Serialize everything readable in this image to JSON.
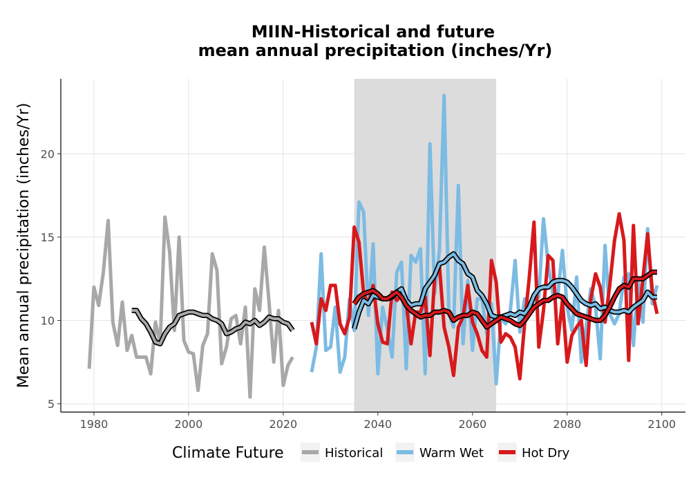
{
  "chart_data": {
    "type": "line",
    "title_lines": [
      "MIIN-Historical and future",
      "mean annual precipitation (inches/Yr)"
    ],
    "xlabel": "",
    "ylabel": "Mean annual precipitation (inches/Yr)",
    "xlim": [
      1973,
      2105
    ],
    "ylim": [
      4.5,
      24.5
    ],
    "x_ticks": [
      1980,
      2000,
      2020,
      2040,
      2060,
      2080,
      2100
    ],
    "y_ticks": [
      5,
      10,
      15,
      20
    ],
    "grid": true,
    "shaded_period": [
      2035,
      2065
    ],
    "legend": {
      "title": "Climate Future",
      "position": "bottom",
      "entries": [
        {
          "label": "Historical",
          "color": "#a8a8a8"
        },
        {
          "label": "Warm Wet",
          "color": "#7cbbe3"
        },
        {
          "label": "Hot Dry",
          "color": "#d7191c"
        }
      ]
    },
    "series": [
      {
        "name": "Historical",
        "color": "#a8a8a8",
        "x": [
          1979,
          1980,
          1981,
          1982,
          1983,
          1984,
          1985,
          1986,
          1987,
          1988,
          1989,
          1990,
          1991,
          1992,
          1993,
          1994,
          1995,
          1996,
          1997,
          1998,
          1999,
          2000,
          2001,
          2002,
          2003,
          2004,
          2005,
          2006,
          2007,
          2008,
          2009,
          2010,
          2011,
          2012,
          2013,
          2014,
          2015,
          2016,
          2017,
          2018,
          2019,
          2020,
          2021,
          2022
        ],
        "values": [
          7.1,
          12.0,
          10.9,
          12.9,
          16.0,
          9.9,
          8.5,
          11.1,
          8.2,
          9.1,
          7.8,
          7.8,
          7.8,
          6.8,
          9.9,
          8.6,
          16.2,
          14.1,
          9.4,
          15.0,
          8.8,
          8.1,
          8.0,
          5.8,
          8.5,
          9.2,
          14.0,
          13.0,
          7.4,
          8.4,
          10.1,
          10.3,
          8.6,
          10.8,
          5.4,
          11.9,
          10.6,
          14.4,
          11.1,
          7.5,
          10.6,
          6.1,
          7.3,
          7.8
        ]
      },
      {
        "name": "Historical rolling mean",
        "color": "#a8a8a8",
        "x": [
          1988,
          1989,
          1990,
          1991,
          1992,
          1993,
          1994,
          1995,
          1996,
          1997,
          1998,
          1999,
          2000,
          2001,
          2002,
          2003,
          2004,
          2005,
          2006,
          2007,
          2008,
          2009,
          2010,
          2011,
          2012,
          2013,
          2014,
          2015,
          2016,
          2017,
          2018,
          2019,
          2020,
          2021,
          2022
        ],
        "values": [
          10.6,
          10.6,
          10.1,
          9.8,
          9.3,
          8.7,
          8.6,
          9.2,
          9.6,
          9.8,
          10.3,
          10.4,
          10.5,
          10.5,
          10.4,
          10.3,
          10.3,
          10.1,
          10.0,
          9.8,
          9.2,
          9.3,
          9.5,
          9.6,
          9.9,
          9.8,
          10.0,
          9.7,
          9.9,
          10.2,
          10.1,
          10.1,
          9.9,
          9.8,
          9.4
        ]
      },
      {
        "name": "Warm Wet",
        "color": "#7cbbe3",
        "x": [
          2026,
          2027,
          2028,
          2029,
          2030,
          2031,
          2032,
          2033,
          2034,
          2035,
          2036,
          2037,
          2038,
          2039,
          2040,
          2041,
          2042,
          2043,
          2044,
          2045,
          2046,
          2047,
          2048,
          2049,
          2050,
          2051,
          2052,
          2053,
          2054,
          2055,
          2056,
          2057,
          2058,
          2059,
          2060,
          2061,
          2062,
          2063,
          2064,
          2065,
          2066,
          2067,
          2068,
          2069,
          2070,
          2071,
          2072,
          2073,
          2074,
          2075,
          2076,
          2077,
          2078,
          2079,
          2080,
          2081,
          2082,
          2083,
          2084,
          2085,
          2086,
          2087,
          2088,
          2089,
          2090,
          2091,
          2092,
          2093,
          2094,
          2095,
          2096,
          2097,
          2098,
          2099
        ],
        "values": [
          6.9,
          8.4,
          14.0,
          8.2,
          8.4,
          10.8,
          6.9,
          7.8,
          11.3,
          9.4,
          17.1,
          16.5,
          10.3,
          14.6,
          6.8,
          10.8,
          9.5,
          7.8,
          12.9,
          13.5,
          7.1,
          13.9,
          13.5,
          14.3,
          6.8,
          20.6,
          11.6,
          14.2,
          23.5,
          10.4,
          9.6,
          18.1,
          8.6,
          12.4,
          8.2,
          11.3,
          11.3,
          9.2,
          11.0,
          6.2,
          10.2,
          9.8,
          10.6,
          13.6,
          9.3,
          11.3,
          10.8,
          11.2,
          11.4,
          16.1,
          13.3,
          11.6,
          11.5,
          14.2,
          10.8,
          9.4,
          12.6,
          7.5,
          9.6,
          11.9,
          10.8,
          7.7,
          14.5,
          10.4,
          9.8,
          10.4,
          12.6,
          12.8,
          8.5,
          12.4,
          9.9,
          15.5,
          11.0,
          12.1
        ]
      },
      {
        "name": "Warm Wet rolling mean",
        "color": "#7cbbe3",
        "x": [
          2035,
          2036,
          2037,
          2038,
          2039,
          2040,
          2041,
          2042,
          2043,
          2044,
          2045,
          2046,
          2047,
          2048,
          2049,
          2050,
          2051,
          2052,
          2053,
          2054,
          2055,
          2056,
          2057,
          2058,
          2059,
          2060,
          2061,
          2062,
          2063,
          2064,
          2065,
          2066,
          2067,
          2068,
          2069,
          2070,
          2071,
          2072,
          2073,
          2074,
          2075,
          2076,
          2077,
          2078,
          2079,
          2080,
          2081,
          2082,
          2083,
          2084,
          2085,
          2086,
          2087,
          2088,
          2089,
          2090,
          2091,
          2092,
          2093,
          2094,
          2095,
          2096,
          2097,
          2098,
          2099
        ],
        "values": [
          9.5,
          10.5,
          11.2,
          11.0,
          11.5,
          11.4,
          11.3,
          11.3,
          11.4,
          11.7,
          11.9,
          11.2,
          10.9,
          11.0,
          11.0,
          11.9,
          12.3,
          12.7,
          13.4,
          13.5,
          13.8,
          14.0,
          13.6,
          13.4,
          12.8,
          12.6,
          11.8,
          11.5,
          11.0,
          10.3,
          10.2,
          10.2,
          10.3,
          10.4,
          10.3,
          10.5,
          10.4,
          10.8,
          11.5,
          11.9,
          12.0,
          12.0,
          12.3,
          12.4,
          12.4,
          12.3,
          12.0,
          11.6,
          11.2,
          11.0,
          10.9,
          11.0,
          10.7,
          10.8,
          10.6,
          10.5,
          10.5,
          10.6,
          10.5,
          10.8,
          11.0,
          11.2,
          11.7,
          11.4,
          11.4
        ]
      },
      {
        "name": "Hot Dry",
        "color": "#d7191c",
        "x": [
          2026,
          2027,
          2028,
          2029,
          2030,
          2031,
          2032,
          2033,
          2034,
          2035,
          2036,
          2037,
          2038,
          2039,
          2040,
          2041,
          2042,
          2043,
          2044,
          2045,
          2046,
          2047,
          2048,
          2049,
          2050,
          2051,
          2052,
          2053,
          2054,
          2055,
          2056,
          2057,
          2058,
          2059,
          2060,
          2061,
          2062,
          2063,
          2064,
          2065,
          2066,
          2067,
          2068,
          2069,
          2070,
          2071,
          2072,
          2073,
          2074,
          2075,
          2076,
          2077,
          2078,
          2079,
          2080,
          2081,
          2082,
          2083,
          2084,
          2085,
          2086,
          2087,
          2088,
          2089,
          2090,
          2091,
          2092,
          2093,
          2094,
          2095,
          2096,
          2097,
          2098,
          2099
        ],
        "values": [
          9.9,
          8.6,
          11.3,
          10.6,
          12.1,
          12.1,
          9.8,
          9.2,
          10.2,
          15.6,
          14.7,
          11.6,
          11.0,
          12.1,
          9.8,
          8.7,
          8.6,
          11.7,
          11.2,
          11.5,
          11.0,
          8.6,
          10.5,
          10.5,
          11.4,
          7.9,
          12.6,
          13.3,
          9.6,
          8.4,
          6.7,
          9.6,
          10.2,
          12.1,
          9.9,
          9.2,
          8.2,
          7.8,
          13.6,
          12.3,
          8.7,
          9.2,
          9.0,
          8.4,
          6.5,
          9.8,
          12.6,
          15.9,
          8.4,
          10.6,
          13.9,
          13.6,
          8.6,
          11.2,
          7.5,
          9.1,
          9.6,
          10.0,
          7.3,
          11.3,
          12.8,
          12.0,
          9.9,
          12.1,
          14.8,
          16.4,
          14.8,
          7.6,
          15.7,
          9.8,
          12.5,
          15.2,
          11.7,
          10.4
        ]
      },
      {
        "name": "Hot Dry rolling mean",
        "color": "#d7191c",
        "x": [
          2035,
          2036,
          2037,
          2038,
          2039,
          2040,
          2041,
          2042,
          2043,
          2044,
          2045,
          2046,
          2047,
          2048,
          2049,
          2050,
          2051,
          2052,
          2053,
          2054,
          2055,
          2056,
          2057,
          2058,
          2059,
          2060,
          2061,
          2062,
          2063,
          2064,
          2065,
          2066,
          2067,
          2068,
          2069,
          2070,
          2071,
          2072,
          2073,
          2074,
          2075,
          2076,
          2077,
          2078,
          2079,
          2080,
          2081,
          2082,
          2083,
          2084,
          2085,
          2086,
          2087,
          2088,
          2089,
          2090,
          2091,
          2092,
          2093,
          2094,
          2095,
          2096,
          2097,
          2098,
          2099
        ],
        "values": [
          11.0,
          11.4,
          11.6,
          11.7,
          11.8,
          11.6,
          11.3,
          11.3,
          11.5,
          11.7,
          11.4,
          10.9,
          10.6,
          10.4,
          10.2,
          10.3,
          10.3,
          10.5,
          10.5,
          10.6,
          10.5,
          10.0,
          10.2,
          10.3,
          10.3,
          10.5,
          10.4,
          10.0,
          9.6,
          9.8,
          10.0,
          10.2,
          10.1,
          10.0,
          9.8,
          9.7,
          10.0,
          10.4,
          10.8,
          11.0,
          11.2,
          11.2,
          11.4,
          11.5,
          11.4,
          11.0,
          10.7,
          10.4,
          10.3,
          10.2,
          10.1,
          10.0,
          10.0,
          10.3,
          10.8,
          11.4,
          11.9,
          12.1,
          12.0,
          12.5,
          12.5,
          12.5,
          12.7,
          12.9,
          12.9
        ]
      }
    ]
  }
}
